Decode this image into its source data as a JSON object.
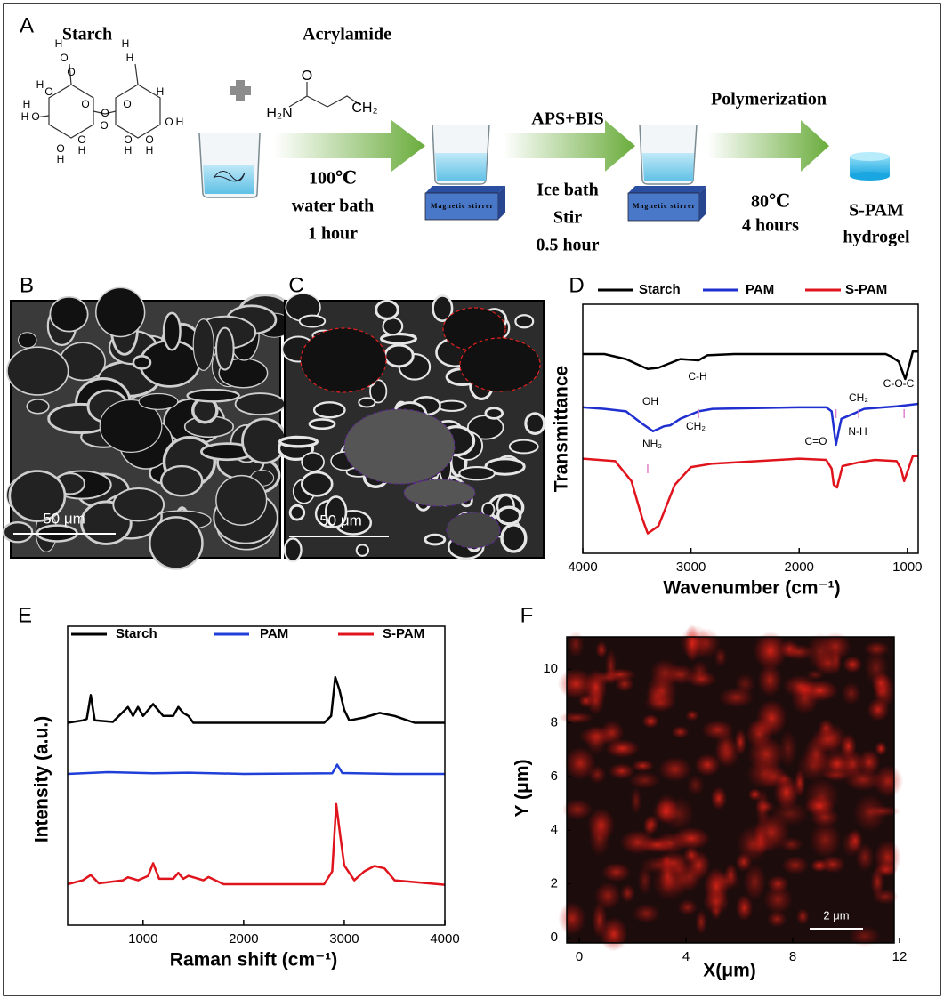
{
  "panel_labels": [
    "A",
    "B",
    "C",
    "D",
    "E",
    "F"
  ],
  "scheme": {
    "starch_title": "Starch",
    "acrylamide_title": "Acrylamide",
    "starch_atoms": [
      "H",
      "O",
      "O",
      "H",
      "H",
      "O",
      "O",
      "O",
      "H",
      "O",
      "H",
      "O",
      "H",
      "H",
      "O",
      "O",
      "H",
      "O",
      "H",
      "O",
      "H",
      "O",
      "H",
      "H",
      "O"
    ],
    "acrylamide_atoms": [
      "O",
      "H₂N",
      "CH₂"
    ],
    "step1": [
      "100℃",
      "water bath",
      "1 hour"
    ],
    "step2_title": "APS+BIS",
    "step2": [
      "Ice bath",
      "Stir",
      "0.5 hour"
    ],
    "step3_title": "Polymerization",
    "step3": [
      "80℃",
      "4 hours"
    ],
    "stirrer_label": "Magnetic stirrer",
    "product": [
      "S-PAM",
      "hydrogel"
    ]
  },
  "sem": {
    "B": {
      "scale_bar": "50 μm"
    },
    "C": {
      "scale_bar": "50 μm"
    }
  },
  "chart_data": [
    {
      "type": "line",
      "xlabel": "Wavenumber (cm⁻¹)",
      "ylabel": "Transmittance",
      "xlim": [
        4000,
        900
      ],
      "xticks": [
        4000,
        3000,
        2000,
        1000
      ],
      "ylim": [
        0,
        100
      ],
      "series": [
        {
          "name": "Starch",
          "color": "#000000",
          "x": [
            4000,
            3800,
            3600,
            3500,
            3400,
            3300,
            3100,
            2930,
            2850,
            2600,
            2000,
            1700,
            1400,
            1200,
            1150,
            1080,
            1020,
            980,
            950,
            900
          ],
          "values": [
            80,
            80,
            78,
            76,
            74,
            74.5,
            78,
            77.5,
            79.5,
            80,
            80,
            80,
            80,
            80,
            79,
            77,
            70,
            76,
            81,
            81
          ]
        },
        {
          "name": "PAM",
          "color": "#1f2fd0",
          "x": [
            4000,
            3800,
            3600,
            3450,
            3350,
            3250,
            3190,
            3100,
            2930,
            2800,
            2000,
            1750,
            1700,
            1660,
            1630,
            1610,
            1500,
            1450,
            1400,
            1100,
            900
          ],
          "values": [
            58.6,
            58,
            57,
            52,
            49,
            51,
            51.4,
            54,
            57,
            58,
            58.6,
            58.6,
            57,
            43.6,
            50,
            54,
            56,
            57,
            58,
            59,
            60
          ]
        },
        {
          "name": "S-PAM",
          "color": "#e0141c",
          "x": [
            4000,
            3700,
            3550,
            3450,
            3400,
            3300,
            3150,
            3000,
            2800,
            2000,
            1750,
            1700,
            1680,
            1650,
            1600,
            1500,
            1450,
            1300,
            1100,
            1060,
            1030,
            990,
            950,
            900
          ],
          "values": [
            38,
            37,
            29,
            14,
            8,
            11,
            27.5,
            34.6,
            36,
            38,
            37.5,
            34,
            27.5,
            26.4,
            35,
            36,
            36.5,
            37.5,
            37,
            34,
            29,
            34,
            39,
            39
          ]
        }
      ],
      "annotations": [
        "OH",
        "C-H",
        "C-O-C",
        "NH₂",
        "CH₂",
        "C=O",
        "N-H",
        "CH₂"
      ],
      "peak_markers": [
        3400,
        2930,
        1660,
        1450,
        1030
      ]
    },
    {
      "type": "line",
      "xlabel": "Raman shift (cm⁻¹)",
      "ylabel": "Intensity (a.u.)",
      "xlim": [
        250,
        4000
      ],
      "xticks": [
        1000,
        2000,
        3000,
        4000
      ],
      "ylim": [
        0,
        100
      ],
      "series": [
        {
          "name": "Starch",
          "color": "#000000",
          "x": [
            250,
            400,
            440,
            480,
            520,
            700,
            850,
            900,
            950,
            1000,
            1100,
            1200,
            1300,
            1350,
            1400,
            1450,
            1500,
            1700,
            2800,
            2870,
            2910,
            2950,
            3000,
            3050,
            3200,
            3350,
            3500,
            3700,
            4000
          ],
          "values": [
            67.7,
            68.5,
            69,
            77,
            68.5,
            68,
            73,
            70,
            73,
            70,
            74,
            70,
            70,
            73,
            71,
            70,
            67.7,
            67.7,
            67.7,
            70,
            83,
            79,
            72,
            68.5,
            69.5,
            71,
            70,
            67.7,
            67.7
          ]
        },
        {
          "name": "PAM",
          "color": "#1f3fd8",
          "x": [
            250,
            650,
            1100,
            1450,
            2000,
            2880,
            2930,
            2980,
            3500,
            4000
          ],
          "values": [
            50.6,
            51.2,
            50.8,
            51,
            50.6,
            50.8,
            53.7,
            50.9,
            50.6,
            50.6
          ]
        },
        {
          "name": "S-PAM",
          "color": "#e0141c",
          "x": [
            250,
            400,
            480,
            560,
            800,
            850,
            950,
            1050,
            1100,
            1160,
            1300,
            1350,
            1400,
            1450,
            1600,
            1650,
            1800,
            2800,
            2880,
            2920,
            2960,
            3000,
            3100,
            3200,
            3300,
            3400,
            3500,
            4000
          ],
          "values": [
            13.7,
            15,
            16.8,
            14,
            15,
            16,
            15,
            16.5,
            20.7,
            15.5,
            15.5,
            17.5,
            15.5,
            16.5,
            15,
            16.1,
            13.7,
            13.7,
            18,
            40.5,
            30,
            20,
            15,
            18,
            19.8,
            19,
            15,
            13.5
          ]
        }
      ]
    },
    {
      "type": "heatmap",
      "xlabel": "X(μm)",
      "ylabel": "Y (μm)",
      "xlim": [
        -0.47,
        11.8
      ],
      "xticks": [
        0,
        4,
        8,
        12
      ],
      "ylim": [
        -0.2,
        11.2
      ],
      "yticks": [
        0,
        2,
        4,
        6,
        8,
        10
      ],
      "color": "#e01818",
      "scale_bar": "2 μm"
    }
  ]
}
